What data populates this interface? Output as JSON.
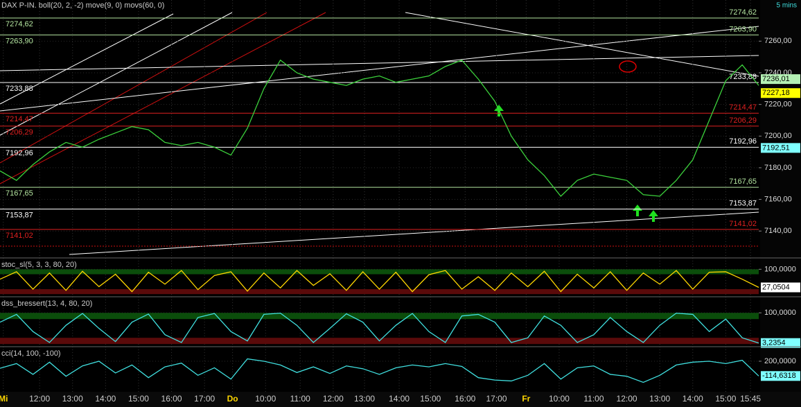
{
  "chart_data": [
    {
      "type": "line",
      "title": "DAX P-IN. boll(20, 2, -2) move(9, 0) movs(60, 0)",
      "timeframe": "5 mins",
      "ylim": [
        7123,
        7286
      ],
      "yticks": [
        {
          "value": 7140,
          "label": "7140,00"
        },
        {
          "value": 7160,
          "label": "7160,00"
        },
        {
          "value": 7180,
          "label": "7180,00"
        },
        {
          "value": 7200,
          "label": "7200,00"
        },
        {
          "value": 7220,
          "label": "7220,00"
        },
        {
          "value": 7240,
          "label": "7240,00"
        },
        {
          "value": 7260,
          "label": "7260,00"
        }
      ],
      "series": [
        {
          "color": "#3cd23c",
          "values": [
            7178,
            7172,
            7182,
            7190,
            7196,
            7193,
            7198,
            7202,
            7206,
            7204,
            7196,
            7194,
            7196,
            7193,
            7188,
            7205,
            7230,
            7248,
            7240,
            7236,
            7234,
            7232,
            7236,
            7238,
            7234,
            7236,
            7238,
            7244,
            7248,
            7236,
            7222,
            7200,
            7185,
            7175,
            7162,
            7172,
            7176,
            7174,
            7172,
            7163,
            7162,
            7172,
            7185,
            7210,
            7235,
            7245,
            7232
          ]
        }
      ],
      "levels": [
        {
          "value": 7274.62,
          "label": "7274,62",
          "color": "#b4e6a0"
        },
        {
          "value": 7263.9,
          "label": "7263,90",
          "color": "#b4e6a0"
        },
        {
          "value": 7233.88,
          "label": "7233,88",
          "color": "#ffffff"
        },
        {
          "value": 7214.47,
          "label": "7214,47",
          "color": "#e02020"
        },
        {
          "value": 7206.29,
          "label": "7206,29",
          "color": "#e02020"
        },
        {
          "value": 7192.96,
          "label": "7192,96",
          "color": "#ffffff"
        },
        {
          "value": 7167.65,
          "label": "7167,65",
          "color": "#b4e6a0"
        },
        {
          "value": 7153.87,
          "label": "7153,87",
          "color": "#ffffff"
        },
        {
          "value": 7141.02,
          "label": "7141,02",
          "color": "#e02020"
        }
      ],
      "markers": [
        {
          "value": 7236.01,
          "label": "7236,01",
          "color": "#b4f0b4"
        },
        {
          "value": 7227.18,
          "label": "7227,18",
          "color": "#ffff00"
        },
        {
          "value": 7192.51,
          "label": "7192,51",
          "color": "#7fffff"
        }
      ]
    },
    {
      "type": "line",
      "title": "stoc_sl(5, 3, 3, 80, 20)",
      "ylim": [
        -5,
        140
      ],
      "yticks": [
        {
          "value": 100,
          "label": "100,0000"
        }
      ],
      "zones": [
        {
          "from": 80,
          "to": 100,
          "color": "#0b4d0b"
        },
        {
          "from": 0,
          "to": 20,
          "color": "#5a0a0a"
        }
      ],
      "series": [
        {
          "color": "#ffd700",
          "values": [
            60,
            90,
            20,
            85,
            15,
            92,
            30,
            80,
            10,
            88,
            40,
            95,
            18,
            75,
            90,
            12,
            85,
            25,
            95,
            35,
            82,
            15,
            90,
            20,
            88,
            10,
            78,
            95,
            20,
            70,
            15,
            85,
            30,
            92,
            10,
            80,
            25,
            90,
            15,
            85,
            40,
            95,
            20,
            88,
            90,
            60,
            27.0504
          ]
        }
      ],
      "markers": [
        {
          "value": 27.0504,
          "label": "27,0504",
          "color": "#ffffff"
        }
      ]
    },
    {
      "type": "line",
      "title": "dss_bressert(13, 4, 80, 20)",
      "ylim": [
        -4,
        147
      ],
      "yticks": [
        {
          "value": 100,
          "label": "100,0000"
        }
      ],
      "zones": [
        {
          "from": 80,
          "to": 100,
          "color": "#0b4d0b"
        },
        {
          "from": 0,
          "to": 20,
          "color": "#5a0a0a"
        }
      ],
      "series": [
        {
          "color": "#40e0e0",
          "values": [
            70,
            95,
            40,
            5,
            60,
            98,
            50,
            8,
            70,
            96,
            30,
            5,
            85,
            98,
            40,
            10,
            95,
            99,
            60,
            5,
            50,
            97,
            70,
            10,
            60,
            98,
            40,
            5,
            90,
            95,
            70,
            5,
            20,
            90,
            60,
            5,
            30,
            85,
            40,
            5,
            60,
            99,
            95,
            40,
            80,
            20,
            3.2354
          ]
        }
      ],
      "markers": [
        {
          "value": 3.2354,
          "label": "3,2354",
          "color": "#7fffff"
        }
      ]
    },
    {
      "type": "line",
      "title": "cci(14, 100, -100)",
      "ylim": [
        -420,
        480
      ],
      "yticks": [
        {
          "value": 200,
          "label": "200,0000"
        }
      ],
      "series": [
        {
          "color": "#40e0e0",
          "values": [
            50,
            150,
            -80,
            180,
            -120,
            100,
            200,
            -50,
            120,
            -150,
            80,
            160,
            -100,
            60,
            -180,
            250,
            200,
            120,
            -40,
            80,
            -60,
            100,
            40,
            -80,
            60,
            120,
            80,
            150,
            90,
            -150,
            -200,
            -220,
            -100,
            150,
            -180,
            60,
            100,
            -80,
            -120,
            -250,
            -100,
            120,
            180,
            200,
            150,
            220,
            -114.6318
          ]
        }
      ],
      "markers": [
        {
          "value": -114.6318,
          "label": "-114,6318",
          "color": "#7fffff"
        }
      ],
      "xlim": [
        0,
        46
      ],
      "xticks": [
        {
          "value": 0.2,
          "label": "Mi"
        },
        {
          "value": 2.4,
          "label": "12:00"
        },
        {
          "value": 4.4,
          "label": "13:00"
        },
        {
          "value": 6.4,
          "label": "14:00"
        },
        {
          "value": 8.4,
          "label": "15:00"
        },
        {
          "value": 10.4,
          "label": "16:00"
        },
        {
          "value": 12.4,
          "label": "17:00"
        },
        {
          "value": 14.1,
          "label": "Do"
        },
        {
          "value": 16.1,
          "label": "10:00"
        },
        {
          "value": 18.2,
          "label": "11:00"
        },
        {
          "value": 20.2,
          "label": "12:00"
        },
        {
          "value": 22.1,
          "label": "13:00"
        },
        {
          "value": 24.2,
          "label": "14:00"
        },
        {
          "value": 26.1,
          "label": "15:00"
        },
        {
          "value": 28.2,
          "label": "16:00"
        },
        {
          "value": 30.1,
          "label": "17:00"
        },
        {
          "value": 31.9,
          "label": "Fr"
        },
        {
          "value": 33.9,
          "label": "10:00"
        },
        {
          "value": 36.0,
          "label": "11:00"
        },
        {
          "value": 38.0,
          "label": "12:00"
        },
        {
          "value": 40.0,
          "label": "13:00"
        },
        {
          "value": 42.0,
          "label": "14:00"
        },
        {
          "value": 44.0,
          "label": "15:00"
        },
        {
          "value": 45.5,
          "label": "15:45"
        }
      ]
    }
  ]
}
